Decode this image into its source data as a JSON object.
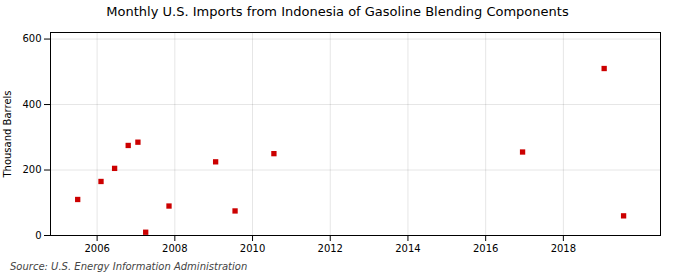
{
  "chart_data": {
    "type": "scatter",
    "title": "Monthly U.S. Imports from Indonesia of Gasoline Blending Components",
    "ylabel": "Thousand Barrels",
    "caption": "Source: U.S. Energy Information Administration",
    "x": [
      2005.5,
      2006.1,
      2006.45,
      2006.8,
      2007.05,
      2007.25,
      2007.85,
      2009.05,
      2009.55,
      2010.55,
      2016.95,
      2019.05,
      2019.55
    ],
    "values": [
      110,
      165,
      205,
      275,
      285,
      10,
      90,
      225,
      75,
      250,
      255,
      510,
      60
    ],
    "color": "#cc0000",
    "marker": "square",
    "xlim": [
      2004.8,
      2020.5
    ],
    "xticks": [
      2006,
      2008,
      2010,
      2012,
      2014,
      2016,
      2018
    ],
    "ylim": [
      0,
      620
    ],
    "yticks": [
      0,
      200,
      400,
      600
    ],
    "grid": true
  }
}
